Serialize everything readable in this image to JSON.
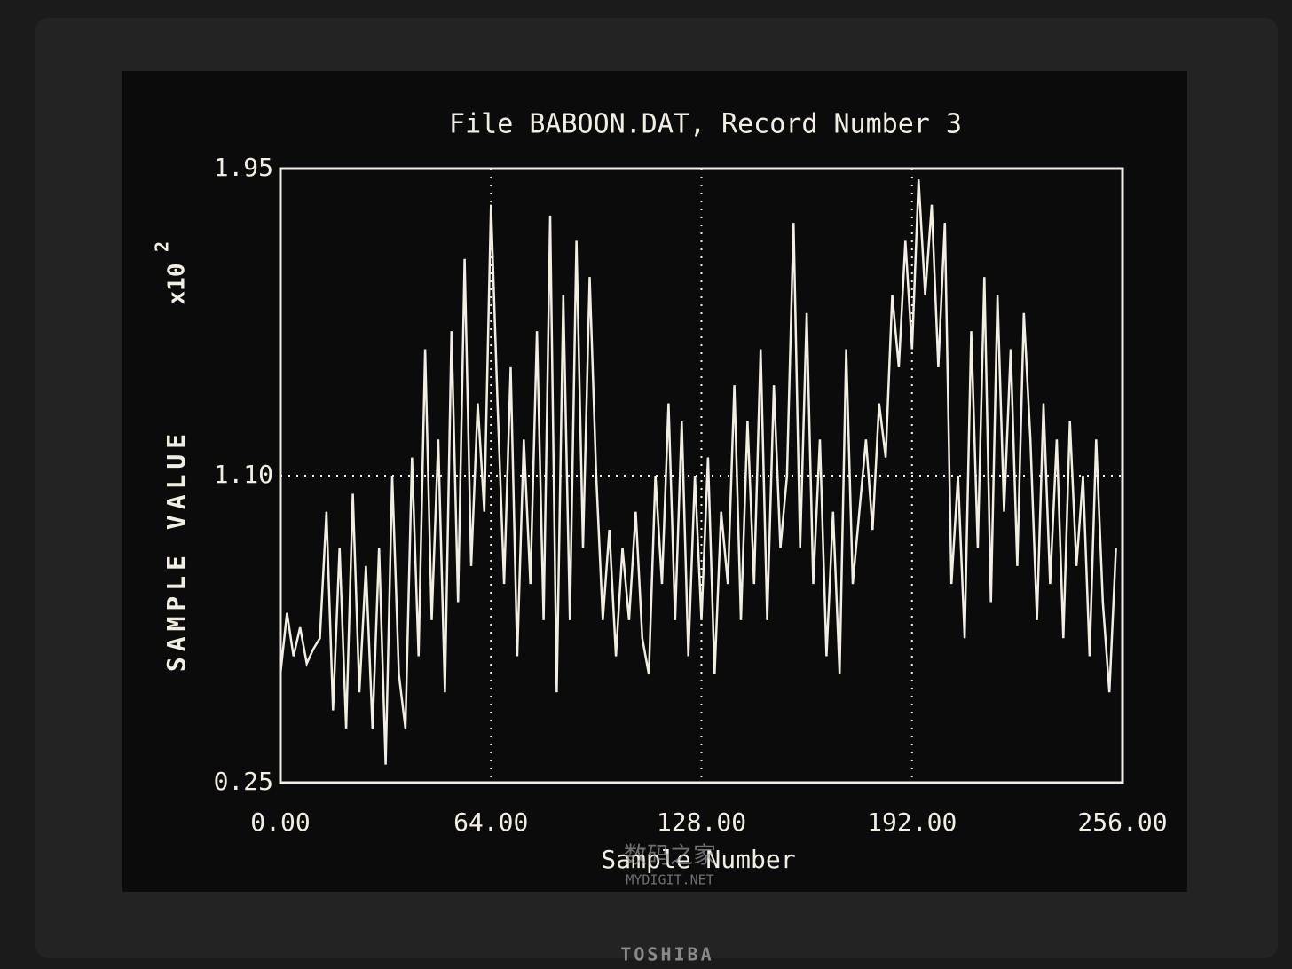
{
  "chart_data": {
    "type": "line",
    "title": "File BABOON.DAT, Record Number 3",
    "x_label": "Sample Number",
    "y_label": "SAMPLE VALUE",
    "y_scale": "x10",
    "y_scale_exp": "2",
    "color": "#f2eee2",
    "grid": true,
    "grid_style": "dotted",
    "xlim": [
      0,
      256
    ],
    "ylim": [
      0.25,
      1.95
    ],
    "xticks": [
      {
        "value": 0,
        "label": "0.00"
      },
      {
        "value": 64,
        "label": "64.00"
      },
      {
        "value": 128,
        "label": "128.00"
      },
      {
        "value": 192,
        "label": "192.00"
      },
      {
        "value": 256,
        "label": "256.00"
      }
    ],
    "yticks": [
      0.25,
      {
        "value": 1.1,
        "label": "1.10"
      },
      1.95
    ],
    "x": [
      0,
      2,
      4,
      6,
      8,
      10,
      12,
      14,
      16,
      18,
      20,
      22,
      24,
      26,
      28,
      30,
      32,
      34,
      36,
      38,
      40,
      42,
      44,
      46,
      48,
      50,
      52,
      54,
      56,
      58,
      60,
      62,
      64,
      66,
      68,
      70,
      72,
      74,
      76,
      78,
      80,
      82,
      84,
      86,
      88,
      90,
      92,
      94,
      96,
      98,
      100,
      102,
      104,
      106,
      108,
      110,
      112,
      114,
      116,
      118,
      120,
      122,
      124,
      126,
      128,
      130,
      132,
      134,
      136,
      138,
      140,
      142,
      144,
      146,
      148,
      150,
      152,
      154,
      156,
      158,
      160,
      162,
      164,
      166,
      168,
      170,
      172,
      174,
      176,
      178,
      180,
      182,
      184,
      186,
      188,
      190,
      192,
      194,
      196,
      198,
      200,
      202,
      204,
      206,
      208,
      210,
      212,
      214,
      216,
      218,
      220,
      222,
      224,
      226,
      228,
      230,
      232,
      234,
      236,
      238,
      240,
      242,
      244,
      246,
      248,
      250,
      252,
      254
    ],
    "values": [
      0.55,
      0.72,
      0.6,
      0.68,
      0.58,
      0.62,
      0.65,
      1.0,
      0.45,
      0.9,
      0.4,
      1.05,
      0.5,
      0.85,
      0.4,
      0.9,
      0.3,
      1.1,
      0.55,
      0.4,
      1.15,
      0.6,
      1.45,
      0.7,
      1.2,
      0.5,
      1.5,
      0.75,
      1.7,
      0.85,
      1.3,
      1.0,
      1.85,
      1.3,
      0.8,
      1.4,
      0.6,
      1.2,
      0.8,
      1.5,
      0.7,
      1.82,
      0.5,
      1.6,
      0.7,
      1.75,
      0.9,
      1.65,
      1.1,
      0.7,
      0.95,
      0.6,
      0.9,
      0.7,
      1.0,
      0.65,
      0.55,
      1.1,
      0.8,
      1.3,
      0.7,
      1.25,
      0.6,
      1.1,
      0.7,
      1.15,
      0.55,
      1.0,
      0.8,
      1.35,
      0.7,
      1.25,
      0.8,
      1.45,
      0.7,
      1.35,
      0.9,
      1.1,
      1.8,
      0.9,
      1.55,
      0.8,
      1.2,
      0.6,
      1.0,
      0.55,
      1.45,
      0.8,
      1.0,
      1.2,
      0.95,
      1.3,
      1.15,
      1.6,
      1.4,
      1.75,
      1.45,
      1.92,
      1.6,
      1.85,
      1.4,
      1.8,
      0.8,
      1.1,
      0.65,
      1.5,
      0.9,
      1.65,
      0.75,
      1.6,
      1.0,
      1.45,
      0.85,
      1.55,
      1.2,
      0.7,
      1.3,
      0.8,
      1.2,
      0.65,
      1.25,
      0.85,
      1.1,
      0.6,
      1.2,
      0.75,
      0.5,
      0.9
    ]
  },
  "watermark": {
    "cn": "数码之家",
    "en": "MYDIGIT.NET"
  },
  "bezel_brand": "TOSHIBA"
}
